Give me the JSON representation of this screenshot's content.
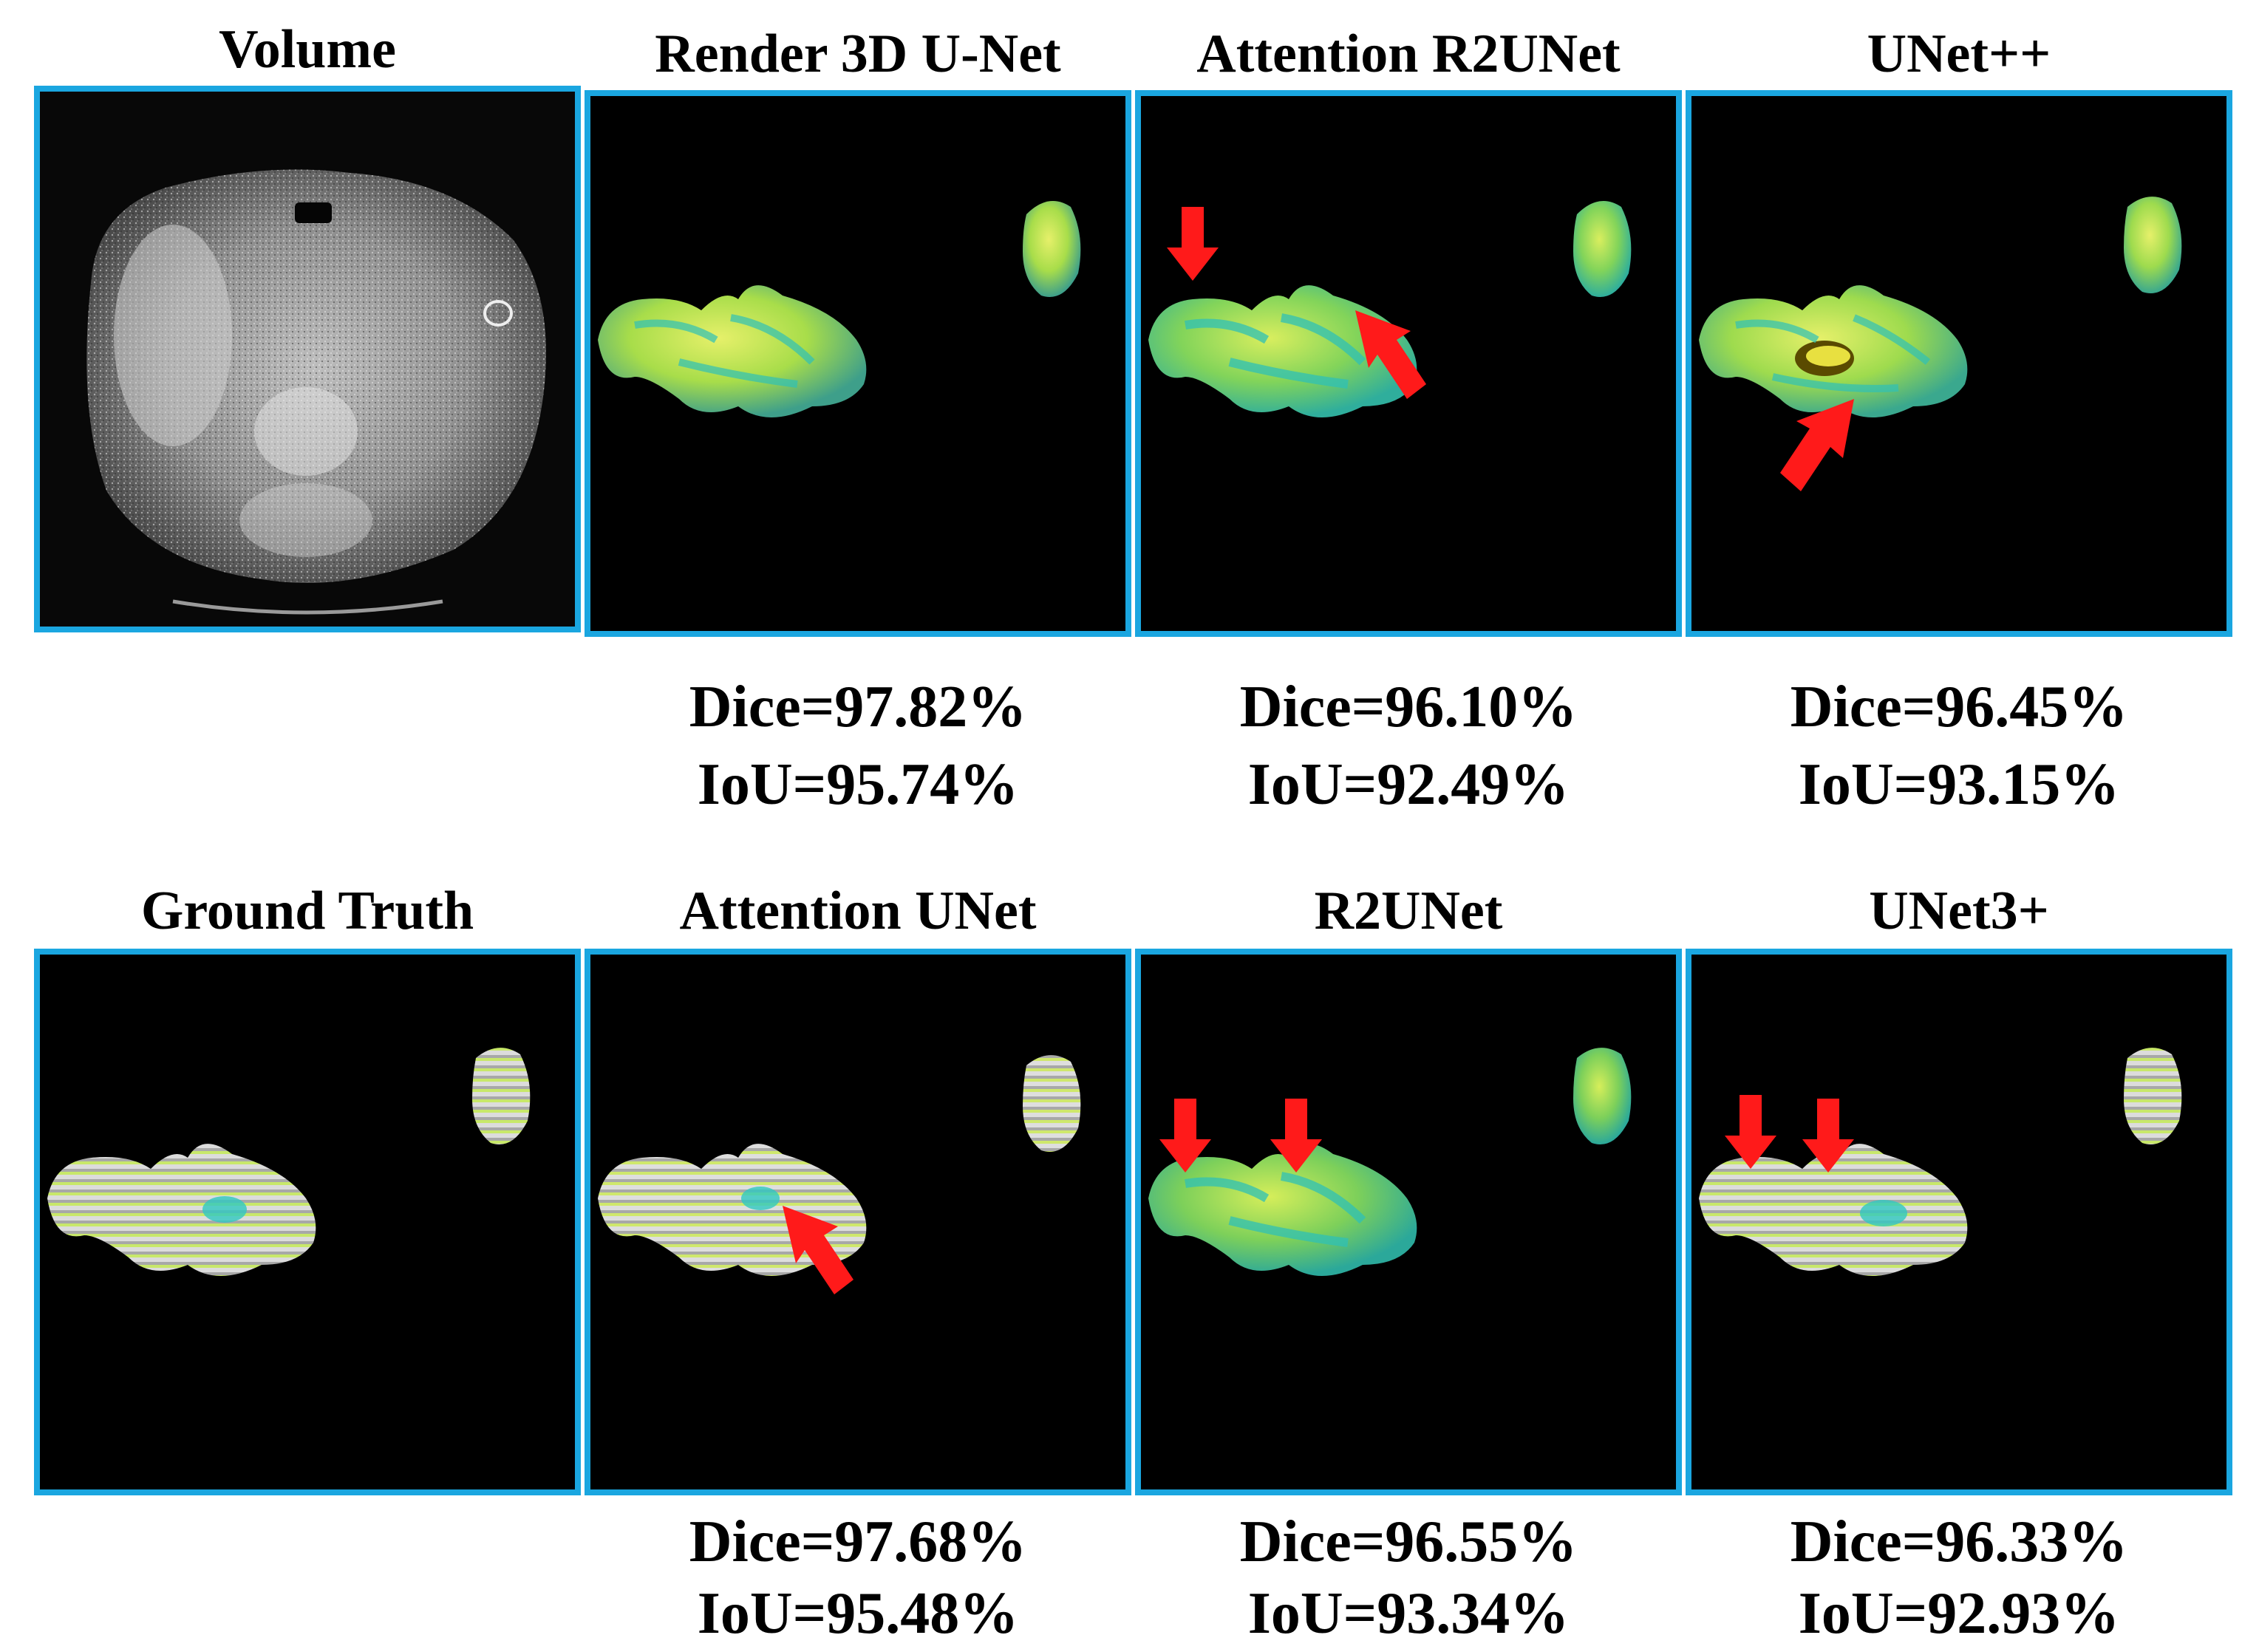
{
  "colors": {
    "frame": "#1aa6e0",
    "arrow": "#ff1a1a",
    "organ_light": "#d8f04a",
    "organ_cyan": "#3fd6c8",
    "organ_gray": "#e0e0e0"
  },
  "rows": [
    {
      "panels": [
        {
          "title": "Volume",
          "kind": "ct-slice"
        },
        {
          "title": "Render 3D U-Net",
          "kind": "smooth",
          "dice": "Dice=97.82%",
          "iou": "IoU=95.74%",
          "arrows": 0
        },
        {
          "title": "Attention R2UNet",
          "kind": "smooth",
          "dice": "Dice=96.10%",
          "iou": "IoU=92.49%",
          "arrows": 2
        },
        {
          "title": "UNet++",
          "kind": "smooth-hole",
          "dice": "Dice=96.45%",
          "iou": "IoU=93.15%",
          "arrows": 1
        }
      ]
    },
    {
      "panels": [
        {
          "title": "Ground Truth",
          "kind": "voxel"
        },
        {
          "title": "Attention UNet",
          "kind": "voxel",
          "dice": "Dice=97.68%",
          "iou": "IoU=95.48%",
          "arrows": 1
        },
        {
          "title": "R2UNet",
          "kind": "smooth",
          "dice": "Dice=96.55%",
          "iou": "IoU=93.34%",
          "arrows": 2
        },
        {
          "title": "UNet3+",
          "kind": "voxel",
          "dice": "Dice=96.33%",
          "iou": "IoU=92.93%",
          "arrows": 2
        }
      ]
    }
  ]
}
